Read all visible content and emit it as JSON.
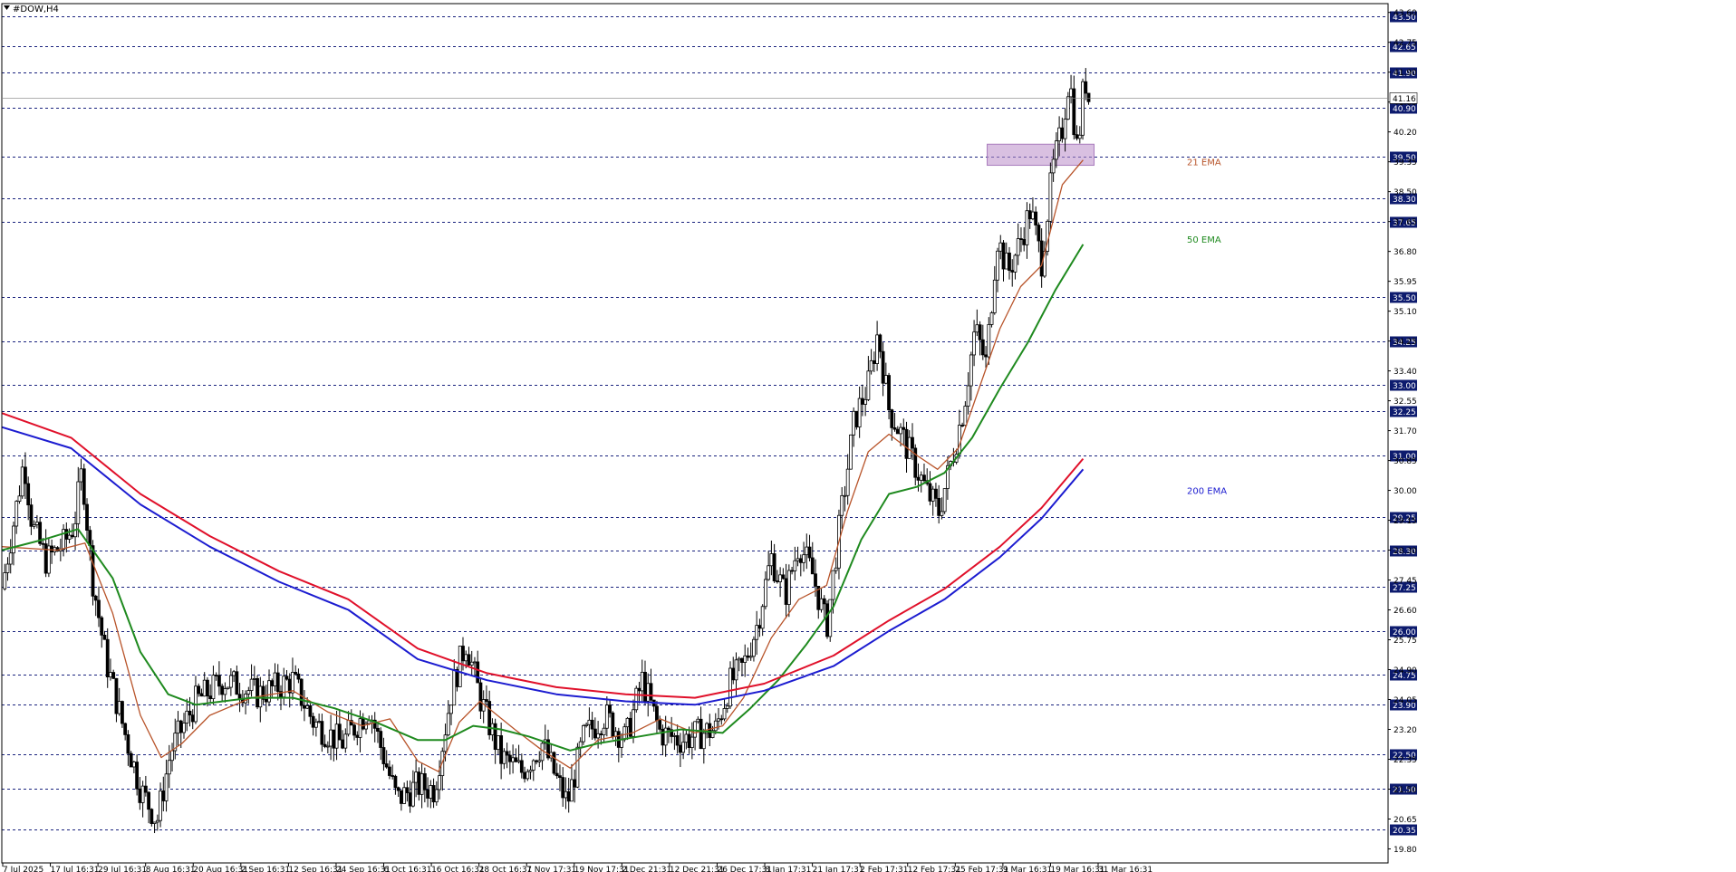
{
  "symbol_label": "#DOW,H4",
  "chart_data": {
    "type": "candlestick",
    "symbol": "#DOW",
    "timeframe": "H4",
    "ylim": [
      19.4,
      43.85
    ],
    "y_ticks": [
      19.8,
      20.65,
      21.5,
      22.35,
      23.2,
      24.05,
      24.9,
      25.75,
      26.6,
      27.45,
      28.3,
      29.15,
      30.0,
      30.85,
      31.7,
      32.55,
      33.4,
      34.25,
      35.1,
      35.95,
      36.8,
      37.65,
      38.5,
      39.35,
      40.2,
      41.05,
      41.9,
      42.75,
      43.6
    ],
    "x_ticks": [
      "7 Jul 2025",
      "17 Jul 16:31",
      "29 Jul 16:31",
      "8 Aug 16:31",
      "20 Aug 16:31",
      "2 Sep 16:31",
      "12 Sep 16:31",
      "24 Sep 16:31",
      "6 Oct 16:31",
      "16 Oct 16:31",
      "28 Oct 16:31",
      "7 Nov 17:31",
      "19 Nov 17:31",
      "2 Dec 21:31",
      "12 Dec 21:31",
      "26 Dec 17:31",
      "8 Jan 17:31",
      "21 Jan 17:31",
      "2 Feb 17:31",
      "12 Feb 17:31",
      "25 Feb 17:31",
      "9 Mar 16:31",
      "19 Mar 16:31",
      "31 Mar 16:31"
    ],
    "levels": [
      20.35,
      21.5,
      22.5,
      23.9,
      24.75,
      26.0,
      27.25,
      28.3,
      29.25,
      31.0,
      32.25,
      33.0,
      34.25,
      35.5,
      37.65,
      38.3,
      39.5,
      40.9,
      41.9,
      42.65,
      43.5
    ],
    "current_price": 41.16,
    "zone": {
      "from": 39.25,
      "to": 39.85
    },
    "grid": false,
    "price_path": [
      {
        "t": 0,
        "p": 27.2
      },
      {
        "t": 0.01,
        "p": 29.4
      },
      {
        "t": 0.016,
        "p": 30.9
      },
      {
        "t": 0.022,
        "p": 29.0
      },
      {
        "t": 0.032,
        "p": 28.0
      },
      {
        "t": 0.045,
        "p": 28.5
      },
      {
        "t": 0.052,
        "p": 29.0
      },
      {
        "t": 0.058,
        "p": 30.6
      },
      {
        "t": 0.065,
        "p": 27.6
      },
      {
        "t": 0.075,
        "p": 25.2
      },
      {
        "t": 0.088,
        "p": 23.2
      },
      {
        "t": 0.1,
        "p": 21.5
      },
      {
        "t": 0.112,
        "p": 20.6
      },
      {
        "t": 0.122,
        "p": 22.6
      },
      {
        "t": 0.14,
        "p": 24.0
      },
      {
        "t": 0.16,
        "p": 24.6
      },
      {
        "t": 0.185,
        "p": 24.2
      },
      {
        "t": 0.21,
        "p": 24.6
      },
      {
        "t": 0.225,
        "p": 23.4
      },
      {
        "t": 0.245,
        "p": 22.8
      },
      {
        "t": 0.265,
        "p": 23.8
      },
      {
        "t": 0.285,
        "p": 21.2
      },
      {
        "t": 0.3,
        "p": 21.6
      },
      {
        "t": 0.312,
        "p": 21.5
      },
      {
        "t": 0.325,
        "p": 24.4
      },
      {
        "t": 0.335,
        "p": 25.7
      },
      {
        "t": 0.345,
        "p": 24.1
      },
      {
        "t": 0.36,
        "p": 22.4
      },
      {
        "t": 0.375,
        "p": 22.0
      },
      {
        "t": 0.39,
        "p": 22.8
      },
      {
        "t": 0.4,
        "p": 21.8
      },
      {
        "t": 0.408,
        "p": 21.1
      },
      {
        "t": 0.42,
        "p": 23.0
      },
      {
        "t": 0.435,
        "p": 23.6
      },
      {
        "t": 0.45,
        "p": 22.9
      },
      {
        "t": 0.462,
        "p": 24.6
      },
      {
        "t": 0.475,
        "p": 23.1
      },
      {
        "t": 0.49,
        "p": 22.9
      },
      {
        "t": 0.505,
        "p": 23.1
      },
      {
        "t": 0.515,
        "p": 23.2
      },
      {
        "t": 0.525,
        "p": 24.5
      },
      {
        "t": 0.535,
        "p": 25.0
      },
      {
        "t": 0.545,
        "p": 26.2
      },
      {
        "t": 0.555,
        "p": 28.1
      },
      {
        "t": 0.565,
        "p": 27.0
      },
      {
        "t": 0.575,
        "p": 28.5
      },
      {
        "t": 0.585,
        "p": 27.6
      },
      {
        "t": 0.595,
        "p": 26.1
      },
      {
        "t": 0.605,
        "p": 29.2
      },
      {
        "t": 0.615,
        "p": 32.0
      },
      {
        "t": 0.625,
        "p": 33.0
      },
      {
        "t": 0.632,
        "p": 34.5
      },
      {
        "t": 0.64,
        "p": 32.3
      },
      {
        "t": 0.65,
        "p": 31.5
      },
      {
        "t": 0.66,
        "p": 30.6
      },
      {
        "t": 0.668,
        "p": 29.9
      },
      {
        "t": 0.676,
        "p": 29.4
      },
      {
        "t": 0.686,
        "p": 31.0
      },
      {
        "t": 0.694,
        "p": 32.4
      },
      {
        "t": 0.702,
        "p": 34.6
      },
      {
        "t": 0.71,
        "p": 33.6
      },
      {
        "t": 0.718,
        "p": 37.2
      },
      {
        "t": 0.726,
        "p": 36.2
      },
      {
        "t": 0.734,
        "p": 37.0
      },
      {
        "t": 0.742,
        "p": 38.0
      },
      {
        "t": 0.75,
        "p": 36.5
      },
      {
        "t": 0.758,
        "p": 39.1
      },
      {
        "t": 0.765,
        "p": 40.3
      },
      {
        "t": 0.77,
        "p": 41.8
      },
      {
        "t": 0.776,
        "p": 39.6
      },
      {
        "t": 0.781,
        "p": 41.8
      },
      {
        "t": 0.784,
        "p": 41.16
      }
    ],
    "series": [
      {
        "name": "21 EMA",
        "color": "#b8542a",
        "values": [
          {
            "t": 0,
            "p": 28.4
          },
          {
            "t": 0.04,
            "p": 28.3
          },
          {
            "t": 0.06,
            "p": 28.5
          },
          {
            "t": 0.08,
            "p": 26.5
          },
          {
            "t": 0.1,
            "p": 23.6
          },
          {
            "t": 0.115,
            "p": 22.4
          },
          {
            "t": 0.13,
            "p": 22.8
          },
          {
            "t": 0.15,
            "p": 23.6
          },
          {
            "t": 0.18,
            "p": 24.1
          },
          {
            "t": 0.21,
            "p": 24.3
          },
          {
            "t": 0.235,
            "p": 23.7
          },
          {
            "t": 0.26,
            "p": 23.3
          },
          {
            "t": 0.28,
            "p": 23.5
          },
          {
            "t": 0.3,
            "p": 22.3
          },
          {
            "t": 0.315,
            "p": 22.0
          },
          {
            "t": 0.33,
            "p": 23.4
          },
          {
            "t": 0.345,
            "p": 24.0
          },
          {
            "t": 0.37,
            "p": 23.2
          },
          {
            "t": 0.39,
            "p": 22.6
          },
          {
            "t": 0.41,
            "p": 22.1
          },
          {
            "t": 0.43,
            "p": 22.9
          },
          {
            "t": 0.455,
            "p": 23.1
          },
          {
            "t": 0.475,
            "p": 23.5
          },
          {
            "t": 0.5,
            "p": 23.1
          },
          {
            "t": 0.52,
            "p": 23.3
          },
          {
            "t": 0.535,
            "p": 24.1
          },
          {
            "t": 0.555,
            "p": 25.8
          },
          {
            "t": 0.575,
            "p": 26.9
          },
          {
            "t": 0.595,
            "p": 27.3
          },
          {
            "t": 0.61,
            "p": 29.4
          },
          {
            "t": 0.625,
            "p": 31.1
          },
          {
            "t": 0.64,
            "p": 31.6
          },
          {
            "t": 0.66,
            "p": 31.0
          },
          {
            "t": 0.675,
            "p": 30.6
          },
          {
            "t": 0.69,
            "p": 31.2
          },
          {
            "t": 0.705,
            "p": 32.9
          },
          {
            "t": 0.72,
            "p": 34.6
          },
          {
            "t": 0.735,
            "p": 35.8
          },
          {
            "t": 0.75,
            "p": 36.4
          },
          {
            "t": 0.765,
            "p": 38.7
          },
          {
            "t": 0.78,
            "p": 39.4
          }
        ]
      },
      {
        "name": "50 EMA",
        "color": "#1f8a1f",
        "values": [
          {
            "t": 0,
            "p": 28.3
          },
          {
            "t": 0.03,
            "p": 28.6
          },
          {
            "t": 0.055,
            "p": 28.9
          },
          {
            "t": 0.08,
            "p": 27.5
          },
          {
            "t": 0.1,
            "p": 25.4
          },
          {
            "t": 0.12,
            "p": 24.2
          },
          {
            "t": 0.14,
            "p": 23.9
          },
          {
            "t": 0.18,
            "p": 24.1
          },
          {
            "t": 0.21,
            "p": 24.1
          },
          {
            "t": 0.24,
            "p": 23.8
          },
          {
            "t": 0.27,
            "p": 23.4
          },
          {
            "t": 0.3,
            "p": 22.9
          },
          {
            "t": 0.32,
            "p": 22.9
          },
          {
            "t": 0.34,
            "p": 23.3
          },
          {
            "t": 0.36,
            "p": 23.2
          },
          {
            "t": 0.38,
            "p": 23.0
          },
          {
            "t": 0.41,
            "p": 22.6
          },
          {
            "t": 0.43,
            "p": 22.8
          },
          {
            "t": 0.46,
            "p": 23.0
          },
          {
            "t": 0.49,
            "p": 23.2
          },
          {
            "t": 0.52,
            "p": 23.1
          },
          {
            "t": 0.54,
            "p": 23.8
          },
          {
            "t": 0.56,
            "p": 24.6
          },
          {
            "t": 0.58,
            "p": 25.6
          },
          {
            "t": 0.6,
            "p": 26.7
          },
          {
            "t": 0.62,
            "p": 28.6
          },
          {
            "t": 0.64,
            "p": 29.9
          },
          {
            "t": 0.66,
            "p": 30.1
          },
          {
            "t": 0.68,
            "p": 30.5
          },
          {
            "t": 0.7,
            "p": 31.5
          },
          {
            "t": 0.72,
            "p": 32.9
          },
          {
            "t": 0.74,
            "p": 34.2
          },
          {
            "t": 0.76,
            "p": 35.7
          },
          {
            "t": 0.78,
            "p": 37.0
          }
        ]
      },
      {
        "name": "200 EMA",
        "color": "#1c1cd0",
        "values": [
          {
            "t": 0,
            "p": 31.8
          },
          {
            "t": 0.05,
            "p": 31.2
          },
          {
            "t": 0.1,
            "p": 29.6
          },
          {
            "t": 0.15,
            "p": 28.4
          },
          {
            "t": 0.2,
            "p": 27.4
          },
          {
            "t": 0.25,
            "p": 26.6
          },
          {
            "t": 0.3,
            "p": 25.2
          },
          {
            "t": 0.35,
            "p": 24.6
          },
          {
            "t": 0.4,
            "p": 24.2
          },
          {
            "t": 0.45,
            "p": 24.0
          },
          {
            "t": 0.5,
            "p": 23.9
          },
          {
            "t": 0.55,
            "p": 24.3
          },
          {
            "t": 0.6,
            "p": 25.0
          },
          {
            "t": 0.64,
            "p": 26.0
          },
          {
            "t": 0.68,
            "p": 26.9
          },
          {
            "t": 0.72,
            "p": 28.1
          },
          {
            "t": 0.75,
            "p": 29.2
          },
          {
            "t": 0.78,
            "p": 30.6
          }
        ]
      },
      {
        "name": "",
        "color": "#e0102a",
        "values": [
          {
            "t": 0,
            "p": 32.2
          },
          {
            "t": 0.05,
            "p": 31.5
          },
          {
            "t": 0.1,
            "p": 29.9
          },
          {
            "t": 0.15,
            "p": 28.7
          },
          {
            "t": 0.2,
            "p": 27.7
          },
          {
            "t": 0.25,
            "p": 26.9
          },
          {
            "t": 0.3,
            "p": 25.5
          },
          {
            "t": 0.35,
            "p": 24.8
          },
          {
            "t": 0.4,
            "p": 24.4
          },
          {
            "t": 0.45,
            "p": 24.2
          },
          {
            "t": 0.5,
            "p": 24.1
          },
          {
            "t": 0.55,
            "p": 24.5
          },
          {
            "t": 0.6,
            "p": 25.3
          },
          {
            "t": 0.64,
            "p": 26.3
          },
          {
            "t": 0.68,
            "p": 27.2
          },
          {
            "t": 0.72,
            "p": 28.4
          },
          {
            "t": 0.75,
            "p": 29.5
          },
          {
            "t": 0.78,
            "p": 30.9
          }
        ]
      }
    ],
    "annotations": [
      {
        "text": "21 EMA",
        "p": 39.35,
        "color": "#b8542a"
      },
      {
        "text": "50 EMA",
        "p": 37.15,
        "color": "#1f8a1f"
      },
      {
        "text": "200 EMA",
        "p": 30.0,
        "color": "#1c1cd0"
      }
    ]
  }
}
